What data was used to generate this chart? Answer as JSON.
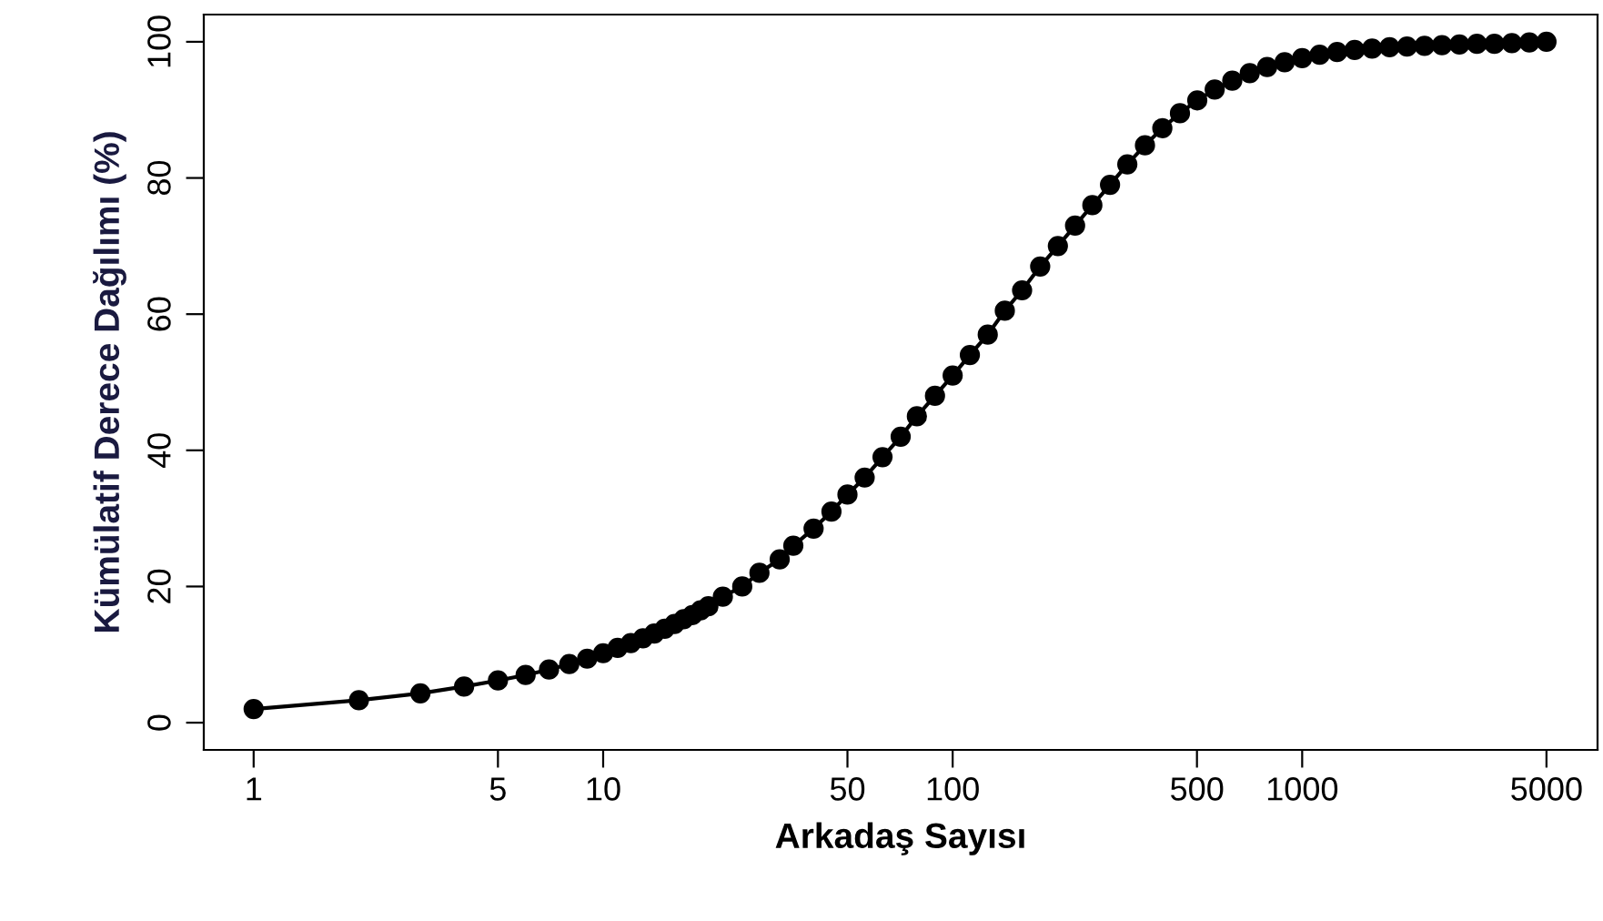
{
  "chart_data": {
    "type": "line",
    "xlabel": "Arkadaş Sayısı",
    "ylabel": "Kümülatif Derece Dağılımı (%)",
    "log": "x",
    "xlim": [
      0.72,
      7000
    ],
    "ylim": [
      -4,
      104
    ],
    "xticks": [
      1,
      5,
      10,
      50,
      100,
      500,
      1000,
      5000
    ],
    "yticks": [
      0,
      20,
      40,
      60,
      80,
      100
    ],
    "marker": "circle",
    "line_style": "solid",
    "series": [
      {
        "color": "#000000",
        "x": [
          1,
          2,
          3,
          4,
          5,
          6,
          7,
          8,
          9,
          10,
          11,
          12,
          13,
          14,
          15,
          16,
          17,
          18,
          19,
          20,
          22,
          25,
          28,
          32,
          35,
          40,
          45,
          50,
          56,
          63,
          71,
          79,
          89,
          100,
          112,
          126,
          141,
          158,
          178,
          200,
          224,
          251,
          282,
          316,
          355,
          398,
          447,
          501,
          562,
          631,
          708,
          794,
          891,
          1000,
          1122,
          1259,
          1413,
          1585,
          1778,
          1995,
          2239,
          2512,
          2818,
          3162,
          3548,
          3981,
          4467,
          5000
        ],
        "values": [
          2,
          3.3,
          4.3,
          5.3,
          6.2,
          7.0,
          7.8,
          8.6,
          9.4,
          10.2,
          11,
          11.7,
          12.4,
          13.1,
          13.8,
          14.5,
          15.2,
          15.8,
          16.5,
          17.1,
          18.5,
          20,
          22,
          24,
          26,
          28.5,
          31,
          33.5,
          36,
          39,
          42,
          45,
          48,
          51,
          54,
          57,
          60.5,
          63.5,
          67,
          70,
          73,
          76,
          79,
          82,
          84.8,
          87.3,
          89.5,
          91.4,
          93,
          94.3,
          95.4,
          96.3,
          97,
          97.6,
          98.1,
          98.5,
          98.8,
          99.0,
          99.2,
          99.3,
          99.4,
          99.5,
          99.6,
          99.7,
          99.7,
          99.8,
          99.9,
          100
        ]
      }
    ]
  }
}
